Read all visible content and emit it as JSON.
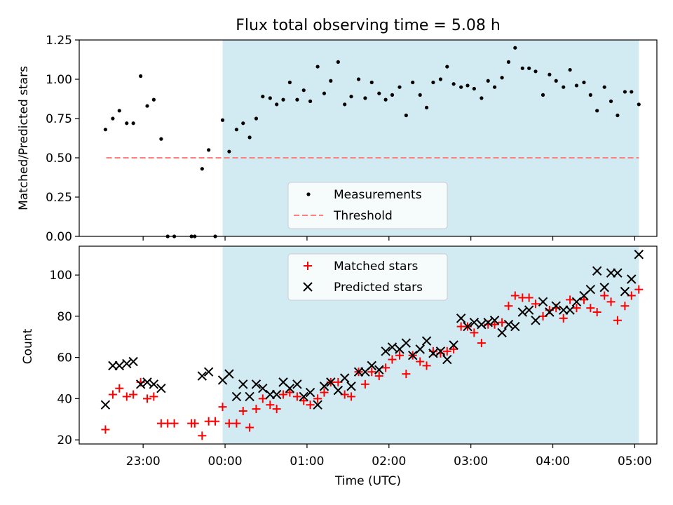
{
  "figure": {
    "title": "Flux total observing time = 5.08 h",
    "xlabel": "Time (UTC)"
  },
  "colors": {
    "shade": "#add8e6",
    "measurement": "#000000",
    "threshold": "#ff7f7f",
    "matched": "#ff0000",
    "predicted": "#000000"
  },
  "chart_data": [
    {
      "type": "scatter",
      "title": "Flux total observing time = 5.08 h",
      "ylabel": "Matched/Predicted stars",
      "xlabel": "",
      "x_unit": "hours relative to 00:00 UTC",
      "xlim": [
        -1.78,
        5.27
      ],
      "ylim": [
        0,
        1.25
      ],
      "yticks": [
        "0.00",
        "0.25",
        "0.50",
        "0.75",
        "1.00",
        "1.25"
      ],
      "observing_window": [
        -0.03,
        5.05
      ],
      "threshold": {
        "name": "Threshold",
        "value": 0.5,
        "x_start": -1.45,
        "x_end": 5.05
      },
      "legend": {
        "position": "lower-center",
        "entries": [
          "Measurements",
          "Threshold"
        ]
      },
      "series": [
        {
          "name": "Measurements",
          "points": [
            [
              -1.46,
              0.68
            ],
            [
              -1.37,
              0.75
            ],
            [
              -1.29,
              0.8
            ],
            [
              -1.2,
              0.72
            ],
            [
              -1.12,
              0.72
            ],
            [
              -1.03,
              1.02
            ],
            [
              -0.95,
              0.83
            ],
            [
              -0.87,
              0.87
            ],
            [
              -0.78,
              0.62
            ],
            [
              -0.7,
              0.0
            ],
            [
              -0.62,
              0.0
            ],
            [
              -0.41,
              0.0
            ],
            [
              -0.37,
              0.0
            ],
            [
              -0.28,
              0.43
            ],
            [
              -0.2,
              0.55
            ],
            [
              -0.12,
              0.0
            ],
            [
              -0.03,
              0.74
            ],
            [
              0.05,
              0.54
            ],
            [
              0.14,
              0.68
            ],
            [
              0.22,
              0.72
            ],
            [
              0.3,
              0.63
            ],
            [
              0.38,
              0.75
            ],
            [
              0.46,
              0.89
            ],
            [
              0.55,
              0.88
            ],
            [
              0.63,
              0.84
            ],
            [
              0.71,
              0.87
            ],
            [
              0.79,
              0.98
            ],
            [
              0.88,
              0.87
            ],
            [
              0.96,
              0.93
            ],
            [
              1.04,
              0.86
            ],
            [
              1.13,
              1.08
            ],
            [
              1.21,
              0.91
            ],
            [
              1.29,
              0.99
            ],
            [
              1.38,
              1.11
            ],
            [
              1.46,
              0.84
            ],
            [
              1.54,
              0.89
            ],
            [
              1.63,
              1.0
            ],
            [
              1.71,
              0.88
            ],
            [
              1.79,
              0.98
            ],
            [
              1.88,
              0.91
            ],
            [
              1.96,
              0.87
            ],
            [
              2.04,
              0.9
            ],
            [
              2.13,
              0.95
            ],
            [
              2.21,
              0.77
            ],
            [
              2.29,
              0.98
            ],
            [
              2.38,
              0.9
            ],
            [
              2.46,
              0.82
            ],
            [
              2.54,
              0.98
            ],
            [
              2.63,
              1.0
            ],
            [
              2.71,
              1.08
            ],
            [
              2.79,
              0.97
            ],
            [
              2.88,
              0.95
            ],
            [
              2.96,
              0.96
            ],
            [
              3.04,
              0.94
            ],
            [
              3.13,
              0.88
            ],
            [
              3.21,
              0.99
            ],
            [
              3.29,
              0.95
            ],
            [
              3.38,
              1.01
            ],
            [
              3.46,
              1.11
            ],
            [
              3.54,
              1.2
            ],
            [
              3.63,
              1.07
            ],
            [
              3.71,
              1.07
            ],
            [
              3.79,
              1.05
            ],
            [
              3.88,
              0.9
            ],
            [
              3.96,
              1.03
            ],
            [
              4.04,
              0.99
            ],
            [
              4.13,
              0.95
            ],
            [
              4.21,
              1.06
            ],
            [
              4.29,
              0.96
            ],
            [
              4.38,
              0.98
            ],
            [
              4.46,
              0.9
            ],
            [
              4.54,
              0.8
            ],
            [
              4.63,
              0.95
            ],
            [
              4.71,
              0.86
            ],
            [
              4.79,
              0.77
            ],
            [
              4.88,
              0.92
            ],
            [
              4.96,
              0.92
            ],
            [
              5.05,
              0.84
            ]
          ]
        }
      ]
    },
    {
      "type": "scatter",
      "title": "",
      "ylabel": "Count",
      "xlabel": "Time (UTC)",
      "x_unit": "hours relative to 00:00 UTC",
      "xlim": [
        -1.78,
        5.27
      ],
      "ylim": [
        18,
        114
      ],
      "yticks": [
        "20",
        "40",
        "60",
        "80",
        "100"
      ],
      "xticks": [
        "23:00",
        "00:00",
        "01:00",
        "02:00",
        "03:00",
        "04:00",
        "05:00"
      ],
      "observing_window": [
        -0.03,
        5.05
      ],
      "legend": {
        "position": "upper-center",
        "entries": [
          "Matched stars",
          "Predicted stars"
        ]
      },
      "series": [
        {
          "name": "Matched stars",
          "marker": "+",
          "points": [
            [
              -1.46,
              25
            ],
            [
              -1.37,
              42
            ],
            [
              -1.29,
              45
            ],
            [
              -1.2,
              41
            ],
            [
              -1.12,
              42
            ],
            [
              -1.03,
              48
            ],
            [
              -0.95,
              40
            ],
            [
              -0.87,
              41
            ],
            [
              -0.78,
              28
            ],
            [
              -0.7,
              28
            ],
            [
              -0.62,
              28
            ],
            [
              -0.41,
              28
            ],
            [
              -0.37,
              28
            ],
            [
              -0.28,
              22
            ],
            [
              -0.2,
              29
            ],
            [
              -0.12,
              29
            ],
            [
              -0.03,
              36
            ],
            [
              0.05,
              28
            ],
            [
              0.14,
              28
            ],
            [
              0.22,
              34
            ],
            [
              0.3,
              26
            ],
            [
              0.38,
              35
            ],
            [
              0.46,
              40
            ],
            [
              0.55,
              37
            ],
            [
              0.63,
              35
            ],
            [
              0.71,
              42
            ],
            [
              0.79,
              43
            ],
            [
              0.88,
              41
            ],
            [
              0.96,
              39
            ],
            [
              1.04,
              37
            ],
            [
              1.13,
              40
            ],
            [
              1.21,
              43
            ],
            [
              1.29,
              48
            ],
            [
              1.38,
              48
            ],
            [
              1.46,
              42
            ],
            [
              1.54,
              41
            ],
            [
              1.63,
              53
            ],
            [
              1.71,
              47
            ],
            [
              1.79,
              53
            ],
            [
              1.88,
              51
            ],
            [
              1.96,
              55
            ],
            [
              2.04,
              59
            ],
            [
              2.13,
              61
            ],
            [
              2.21,
              52
            ],
            [
              2.29,
              61
            ],
            [
              2.38,
              58
            ],
            [
              2.46,
              56
            ],
            [
              2.54,
              63
            ],
            [
              2.63,
              62
            ],
            [
              2.71,
              63
            ],
            [
              2.79,
              64
            ],
            [
              2.88,
              75
            ],
            [
              2.96,
              75
            ],
            [
              3.04,
              72
            ],
            [
              3.13,
              67
            ],
            [
              3.21,
              76
            ],
            [
              3.29,
              76
            ],
            [
              3.38,
              77
            ],
            [
              3.46,
              85
            ],
            [
              3.54,
              90
            ],
            [
              3.63,
              89
            ],
            [
              3.71,
              89
            ],
            [
              3.79,
              86
            ],
            [
              3.88,
              80
            ],
            [
              3.96,
              83
            ],
            [
              4.04,
              84
            ],
            [
              4.13,
              79
            ],
            [
              4.21,
              88
            ],
            [
              4.29,
              84
            ],
            [
              4.38,
              88
            ],
            [
              4.46,
              84
            ],
            [
              4.54,
              82
            ],
            [
              4.63,
              90
            ],
            [
              4.71,
              87
            ],
            [
              4.79,
              78
            ],
            [
              4.88,
              85
            ],
            [
              4.96,
              90
            ],
            [
              5.05,
              93
            ]
          ]
        },
        {
          "name": "Predicted stars",
          "marker": "x",
          "points": [
            [
              -1.46,
              37
            ],
            [
              -1.37,
              56
            ],
            [
              -1.29,
              56
            ],
            [
              -1.2,
              57
            ],
            [
              -1.12,
              58
            ],
            [
              -1.03,
              47
            ],
            [
              -0.95,
              48
            ],
            [
              -0.87,
              47
            ],
            [
              -0.78,
              45
            ],
            [
              -0.28,
              51
            ],
            [
              -0.2,
              53
            ],
            [
              -0.03,
              49
            ],
            [
              0.05,
              52
            ],
            [
              0.14,
              41
            ],
            [
              0.22,
              47
            ],
            [
              0.3,
              41
            ],
            [
              0.38,
              47
            ],
            [
              0.46,
              45
            ],
            [
              0.55,
              42
            ],
            [
              0.63,
              42
            ],
            [
              0.71,
              48
            ],
            [
              0.79,
              45
            ],
            [
              0.88,
              47
            ],
            [
              0.96,
              41
            ],
            [
              1.04,
              43
            ],
            [
              1.13,
              37
            ],
            [
              1.21,
              46
            ],
            [
              1.29,
              48
            ],
            [
              1.38,
              44
            ],
            [
              1.46,
              50
            ],
            [
              1.54,
              46
            ],
            [
              1.63,
              53
            ],
            [
              1.71,
              53
            ],
            [
              1.79,
              56
            ],
            [
              1.88,
              54
            ],
            [
              1.96,
              63
            ],
            [
              2.04,
              65
            ],
            [
              2.13,
              64
            ],
            [
              2.21,
              67
            ],
            [
              2.29,
              61
            ],
            [
              2.38,
              64
            ],
            [
              2.46,
              68
            ],
            [
              2.54,
              62
            ],
            [
              2.63,
              63
            ],
            [
              2.71,
              59
            ],
            [
              2.79,
              66
            ],
            [
              2.88,
              79
            ],
            [
              2.96,
              75
            ],
            [
              3.04,
              77
            ],
            [
              3.13,
              76
            ],
            [
              3.21,
              77
            ],
            [
              3.29,
              78
            ],
            [
              3.38,
              72
            ],
            [
              3.46,
              76
            ],
            [
              3.54,
              75
            ],
            [
              3.63,
              82
            ],
            [
              3.71,
              83
            ],
            [
              3.79,
              78
            ],
            [
              3.88,
              87
            ],
            [
              3.96,
              82
            ],
            [
              4.04,
              85
            ],
            [
              4.13,
              83
            ],
            [
              4.21,
              83
            ],
            [
              4.29,
              87
            ],
            [
              4.38,
              90
            ],
            [
              4.46,
              93
            ],
            [
              4.54,
              102
            ],
            [
              4.63,
              94
            ],
            [
              4.71,
              101
            ],
            [
              4.79,
              101
            ],
            [
              4.88,
              92
            ],
            [
              4.96,
              98
            ],
            [
              5.05,
              110
            ]
          ]
        }
      ]
    }
  ]
}
